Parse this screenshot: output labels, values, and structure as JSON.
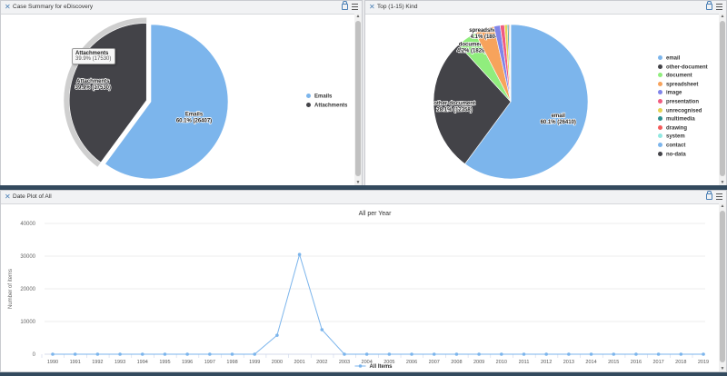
{
  "panels": {
    "summary": {
      "title": "Case Summary for eDiscovery"
    },
    "kind": {
      "title": "Top (1-15) Kind"
    },
    "date": {
      "title": "Date Plot of All"
    }
  },
  "tooltip": {
    "label": "Attachments",
    "value": "39.9% (17530)"
  },
  "colors": {
    "accent": "#7cb5ec",
    "dark": "#434348",
    "header": "#f1f2f4",
    "bar": "#334a5e"
  },
  "icons": [
    "close-icon",
    "lock-icon",
    "menu-icon"
  ],
  "chart_data": [
    {
      "type": "pie",
      "slices": [
        {
          "name": "Emails",
          "pct": 60.1,
          "count": 26407,
          "color": "#7cb5ec",
          "label_line1": "Emails",
          "label_line2": "60.1% (26407)"
        },
        {
          "name": "Attachments",
          "pct": 39.9,
          "count": 17530,
          "color": "#434348",
          "label_line1": "Attachments",
          "label_line2": "39.9% (17530)"
        }
      ],
      "legend": [
        "Emails",
        "Attachments"
      ]
    },
    {
      "type": "pie",
      "slices": [
        {
          "name": "email",
          "pct": 60.1,
          "count": 26410,
          "color": "#7cb5ec",
          "label_line1": "email",
          "label_line2": "60.1% (26410)"
        },
        {
          "name": "other-document",
          "pct": 28.1,
          "count": 12358,
          "color": "#434348",
          "label_line1": "other-document",
          "label_line2": "28.1% (12358)"
        },
        {
          "name": "document",
          "pct": 4.2,
          "count": 1828,
          "color": "#90ed7d",
          "label_line1": "document",
          "label_line2": "4.2% (1828)"
        },
        {
          "name": "spreadsheet",
          "pct": 4.1,
          "count": 1804,
          "color": "#f7a35c",
          "label_line1": "spreadsheet",
          "label_line2": "4.1% (1804)"
        },
        {
          "name": "image",
          "pct": 1.3,
          "count": null,
          "color": "#8085e9",
          "label_line1": "",
          "label_line2": ""
        },
        {
          "name": "presentation",
          "pct": 0.9,
          "count": null,
          "color": "#f15c80",
          "label_line1": "",
          "label_line2": ""
        },
        {
          "name": "unrecognised",
          "pct": 0.6,
          "count": null,
          "color": "#e4d354",
          "label_line1": "",
          "label_line2": ""
        },
        {
          "name": "multimedia",
          "pct": 0.3,
          "count": null,
          "color": "#2b908f",
          "label_line1": "",
          "label_line2": ""
        },
        {
          "name": "drawing",
          "pct": 0.2,
          "count": null,
          "color": "#f45b5b",
          "label_line1": "",
          "label_line2": ""
        },
        {
          "name": "system",
          "pct": 0.1,
          "count": null,
          "color": "#91e8e1",
          "label_line1": "",
          "label_line2": ""
        },
        {
          "name": "contact",
          "pct": 0.05,
          "count": null,
          "color": "#7cb5ec",
          "label_line1": "",
          "label_line2": ""
        },
        {
          "name": "no-data",
          "pct": 0.05,
          "count": null,
          "color": "#434348",
          "label_line1": "",
          "label_line2": ""
        }
      ],
      "legend": [
        "email",
        "other-document",
        "document",
        "spreadsheet",
        "image",
        "presentation",
        "unrecognised",
        "multimedia",
        "drawing",
        "system",
        "contact",
        "no-data"
      ]
    },
    {
      "type": "line",
      "title": "All per Year",
      "ylabel": "Number of items",
      "ylim": [
        0,
        40000
      ],
      "yticks": [
        0,
        10000,
        20000,
        30000,
        40000
      ],
      "ytick_labels": [
        "0",
        "10000",
        "20000",
        "30000",
        "40000"
      ],
      "x": [
        "1990",
        "1991",
        "1992",
        "1993",
        "1994",
        "1995",
        "1996",
        "1997",
        "1998",
        "1999",
        "2000",
        "2001",
        "2002",
        "2003",
        "2004",
        "2005",
        "2006",
        "2007",
        "2008",
        "2009",
        "2010",
        "2011",
        "2012",
        "2013",
        "2014",
        "2015",
        "2016",
        "2017",
        "2018",
        "2019"
      ],
      "series": [
        {
          "name": "All Items",
          "color": "#7cb5ec",
          "values": [
            0,
            0,
            0,
            0,
            0,
            0,
            0,
            0,
            0,
            0,
            5800,
            30500,
            7500,
            0,
            0,
            0,
            0,
            0,
            0,
            0,
            0,
            0,
            0,
            0,
            0,
            0,
            0,
            0,
            0,
            0
          ]
        }
      ],
      "legend": "bottom-center",
      "grid": true
    }
  ]
}
